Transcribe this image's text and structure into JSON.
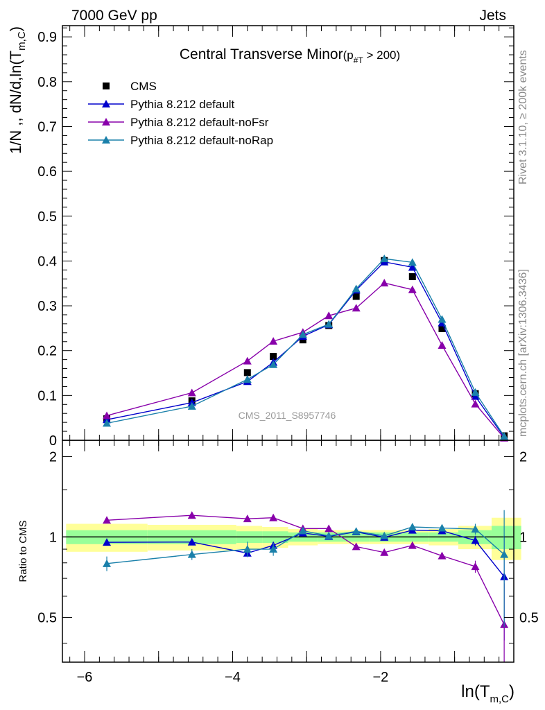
{
  "header": {
    "left": "7000 GeV pp",
    "right": "Jets"
  },
  "side_text": {
    "rivet": "Rivet 3.1.10, ≥ 200k events",
    "mcplots": "mcplots.cern.ch [arXiv:1306.3436]"
  },
  "watermark": "CMS_2011_S8957746",
  "chart_data": {
    "type": "scatter",
    "title_main": "Central Transverse Minor",
    "title_sub_open": "(p",
    "title_sub_index": "#T",
    "title_sub_close": "  > 200)",
    "ylabel_main": "1/N ,, dN/d,ln(T",
    "ylabel_sub": "m,C",
    "ylabel_close": ")",
    "xlabel_main": "ln(T",
    "xlabel_sub": "m,C",
    "xlabel_close": ")",
    "ratio_ylabel": "Ratio to CMS",
    "xlim": [
      -6.3,
      -0.2
    ],
    "ylim": [
      0,
      0.925
    ],
    "ratio_ylim": [
      0.34,
      2.3
    ],
    "x_ticks": [
      -6,
      -4,
      -2
    ],
    "x_tick_labels": [
      "−6",
      "−4",
      "−2"
    ],
    "y_ticks": [
      0,
      0.1,
      0.2,
      0.3,
      0.4,
      0.5,
      0.6,
      0.7,
      0.8,
      0.9
    ],
    "y_tick_labels": [
      "0",
      "0.1",
      "0.2",
      "0.3",
      "0.4",
      "0.5",
      "0.6",
      "0.7",
      "0.8",
      "0.9"
    ],
    "ratio_ticks": [
      0.5,
      1,
      2
    ],
    "ratio_tick_labels": [
      "0.5",
      "1",
      "2"
    ],
    "legend_position": "top-left",
    "x": [
      -5.7,
      -4.55,
      -3.8,
      -3.45,
      -3.05,
      -2.7,
      -2.33,
      -1.95,
      -1.57,
      -1.17,
      -0.72,
      -0.33
    ],
    "bin_edges": [
      -6.25,
      -5.15,
      -3.95,
      -3.6,
      -3.25,
      -2.85,
      -2.5,
      -2.15,
      -1.75,
      -1.35,
      -0.95,
      -0.5,
      -0.1
    ],
    "band_inner": [
      0.06,
      0.06,
      0.05,
      0.05,
      0.04,
      0.04,
      0.04,
      0.04,
      0.04,
      0.04,
      0.06,
      0.1
    ],
    "band_outer": [
      0.12,
      0.11,
      0.1,
      0.09,
      0.07,
      0.06,
      0.06,
      0.06,
      0.06,
      0.07,
      0.1,
      0.18
    ],
    "series": [
      {
        "name": "CMS",
        "color": "#000000",
        "marker": "square",
        "line": false,
        "values": [
          0.048,
          0.088,
          0.151,
          0.187,
          0.224,
          0.256,
          0.321,
          0.401,
          0.365,
          0.249,
          0.104,
          0.01
        ],
        "ratio": [
          1,
          1,
          1,
          1,
          1,
          1,
          1,
          1,
          1,
          1,
          1,
          1
        ],
        "ratio_err": [
          0,
          0,
          0,
          0,
          0,
          0,
          0,
          0,
          0,
          0,
          0,
          0
        ]
      },
      {
        "name": "Pythia 8.212 default",
        "color": "#0000cc",
        "marker": "triangle",
        "line": true,
        "values": [
          0.046,
          0.084,
          0.131,
          0.174,
          0.232,
          0.258,
          0.335,
          0.398,
          0.386,
          0.262,
          0.098,
          0.007
        ],
        "ratio": [
          0.955,
          0.957,
          0.87,
          0.93,
          1.035,
          1.005,
          1.045,
          0.997,
          1.06,
          1.055,
          0.97,
          0.71
        ],
        "ratio_err": [
          0.02,
          0.02,
          0.02,
          0.02,
          0.02,
          0.02,
          0.02,
          0.02,
          0.02,
          0.02,
          0.04,
          0.3
        ]
      },
      {
        "name": "Pythia 8.212 default-noFsr",
        "color": "#8800aa",
        "marker": "triangle",
        "line": true,
        "values": [
          0.055,
          0.106,
          0.177,
          0.221,
          0.241,
          0.278,
          0.295,
          0.351,
          0.336,
          0.212,
          0.081,
          0.005
        ],
        "ratio": [
          1.155,
          1.205,
          1.17,
          1.18,
          1.075,
          1.075,
          0.92,
          0.875,
          0.93,
          0.85,
          0.775,
          0.47
        ],
        "ratio_err": [
          0.02,
          0.02,
          0.02,
          0.02,
          0.02,
          0.02,
          0.02,
          0.02,
          0.02,
          0.02,
          0.04,
          0.2
        ]
      },
      {
        "name": "Pythia 8.212 default-noRap",
        "color": "#1a80aa",
        "marker": "triangle",
        "line": true,
        "values": [
          0.038,
          0.076,
          0.136,
          0.169,
          0.236,
          0.259,
          0.338,
          0.405,
          0.397,
          0.27,
          0.107,
          0.009
        ],
        "ratio": [
          0.795,
          0.86,
          0.9,
          0.9,
          1.055,
          1.01,
          1.05,
          1.01,
          1.09,
          1.08,
          1.07,
          0.86
        ],
        "ratio_err": [
          0.05,
          0.04,
          0.06,
          0.05,
          0.03,
          0.03,
          0.03,
          0.03,
          0.03,
          0.03,
          0.05,
          0.4
        ]
      }
    ]
  }
}
